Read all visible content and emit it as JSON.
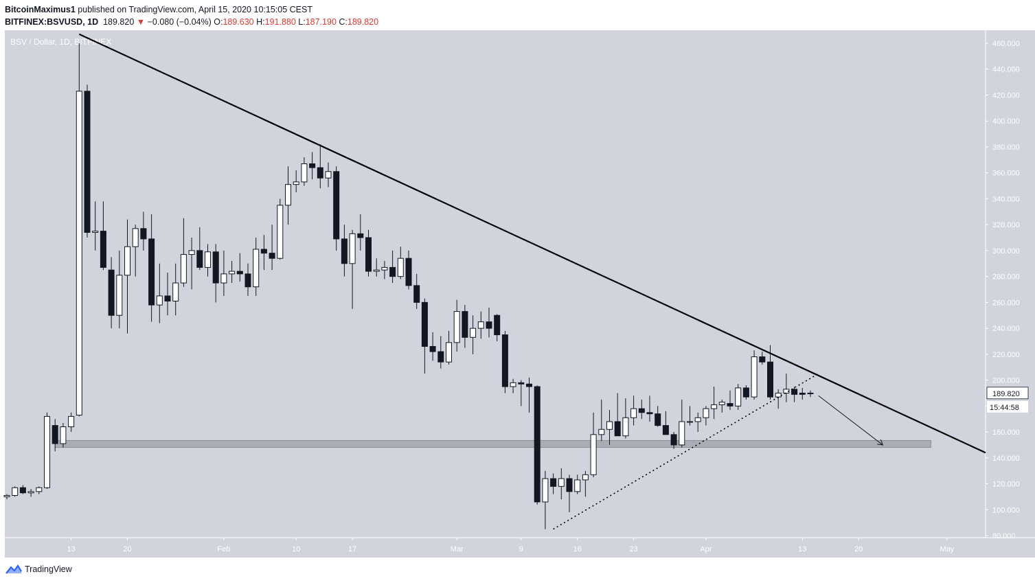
{
  "header": {
    "author": "BitcoinMaximus1",
    "published_text": "published on TradingView.com, April 15, 2020 10:15:05 CEST",
    "symbol": "BITFINEX:BSVUSD, 1D",
    "last": "189.820",
    "change": "−0.080 (−0.04%)",
    "o_label": "O:",
    "o": "189.630",
    "h_label": "H:",
    "h": "191.880",
    "l_label": "L:",
    "l": "187.190",
    "c_label": "C:",
    "c": "189.820"
  },
  "chart_data": {
    "type": "candlestick",
    "title": "BSV / Dollar, 1D, BITFINEX",
    "ylim": [
      80,
      470
    ],
    "y_ticks": [
      "80.000",
      "100.000",
      "120.000",
      "140.000",
      "160.000",
      "180.000",
      "200.000",
      "220.000",
      "240.000",
      "260.000",
      "280.000",
      "300.000",
      "320.000",
      "340.000",
      "360.000",
      "380.000",
      "400.000",
      "420.000",
      "440.000",
      "460.000"
    ],
    "x_ticks": [
      "13",
      "20",
      "Feb",
      "10",
      "17",
      "Mar",
      "9",
      "16",
      "23",
      "Apr",
      "13",
      "20",
      "May"
    ],
    "x_start_date": "2020-01-05",
    "dates": [
      "2020-01-05",
      "2020-01-06",
      "2020-01-07",
      "2020-01-08",
      "2020-01-09",
      "2020-01-10",
      "2020-01-11",
      "2020-01-12",
      "2020-01-13",
      "2020-01-14",
      "2020-01-15",
      "2020-01-16",
      "2020-01-17",
      "2020-01-18",
      "2020-01-19",
      "2020-01-20",
      "2020-01-21",
      "2020-01-22",
      "2020-01-23",
      "2020-01-24",
      "2020-01-25",
      "2020-01-26",
      "2020-01-27",
      "2020-01-28",
      "2020-01-29",
      "2020-01-30",
      "2020-01-31",
      "2020-02-01",
      "2020-02-02",
      "2020-02-03",
      "2020-02-04",
      "2020-02-05",
      "2020-02-06",
      "2020-02-07",
      "2020-02-08",
      "2020-02-09",
      "2020-02-10",
      "2020-02-11",
      "2020-02-12",
      "2020-02-13",
      "2020-02-14",
      "2020-02-15",
      "2020-02-16",
      "2020-02-17",
      "2020-02-18",
      "2020-02-19",
      "2020-02-20",
      "2020-02-21",
      "2020-02-22",
      "2020-02-23",
      "2020-02-24",
      "2020-02-25",
      "2020-02-26",
      "2020-02-27",
      "2020-02-28",
      "2020-02-29",
      "2020-03-01",
      "2020-03-02",
      "2020-03-03",
      "2020-03-04",
      "2020-03-05",
      "2020-03-06",
      "2020-03-07",
      "2020-03-08",
      "2020-03-09",
      "2020-03-10",
      "2020-03-11",
      "2020-03-12",
      "2020-03-13",
      "2020-03-14",
      "2020-03-15",
      "2020-03-16",
      "2020-03-17",
      "2020-03-18",
      "2020-03-19",
      "2020-03-20",
      "2020-03-21",
      "2020-03-22",
      "2020-03-23",
      "2020-03-24",
      "2020-03-25",
      "2020-03-26",
      "2020-03-27",
      "2020-03-28",
      "2020-03-29",
      "2020-03-30",
      "2020-03-31",
      "2020-04-01",
      "2020-04-02",
      "2020-04-03",
      "2020-04-04",
      "2020-04-05",
      "2020-04-06",
      "2020-04-07",
      "2020-04-08",
      "2020-04-09",
      "2020-04-10",
      "2020-04-11",
      "2020-04-12",
      "2020-04-13",
      "2020-04-14",
      "2020-04-15"
    ],
    "ohlc": [
      [
        110,
        112,
        108,
        111
      ],
      [
        111,
        118,
        110,
        117
      ],
      [
        117,
        119,
        112,
        113
      ],
      [
        113,
        116,
        110,
        114
      ],
      [
        114,
        118,
        112,
        117
      ],
      [
        117,
        175,
        116,
        172
      ],
      [
        165,
        170,
        145,
        151
      ],
      [
        151,
        167,
        148,
        164
      ],
      [
        164,
        175,
        160,
        172
      ],
      [
        173,
        460,
        172,
        423
      ],
      [
        423,
        428,
        310,
        314
      ],
      [
        314,
        338,
        300,
        315
      ],
      [
        315,
        338,
        285,
        287
      ],
      [
        285,
        295,
        240,
        250
      ],
      [
        250,
        300,
        240,
        281
      ],
      [
        281,
        324,
        236,
        303
      ],
      [
        303,
        320,
        280,
        317
      ],
      [
        317,
        330,
        300,
        309
      ],
      [
        309,
        328,
        245,
        258
      ],
      [
        258,
        290,
        244,
        265
      ],
      [
        265,
        283,
        250,
        261
      ],
      [
        261,
        290,
        250,
        275
      ],
      [
        275,
        325,
        272,
        297
      ],
      [
        297,
        310,
        270,
        300
      ],
      [
        300,
        318,
        285,
        287
      ],
      [
        287,
        305,
        280,
        299
      ],
      [
        299,
        305,
        260,
        275
      ],
      [
        275,
        300,
        265,
        282
      ],
      [
        282,
        292,
        275,
        284
      ],
      [
        284,
        298,
        276,
        282
      ],
      [
        282,
        290,
        265,
        272
      ],
      [
        272,
        310,
        265,
        301
      ],
      [
        301,
        312,
        285,
        298
      ],
      [
        298,
        320,
        285,
        294
      ],
      [
        294,
        340,
        293,
        335
      ],
      [
        335,
        365,
        320,
        351
      ],
      [
        351,
        362,
        345,
        353
      ],
      [
        353,
        372,
        350,
        367
      ],
      [
        367,
        376,
        355,
        364
      ],
      [
        364,
        382,
        348,
        356
      ],
      [
        356,
        368,
        349,
        361
      ],
      [
        361,
        365,
        300,
        309
      ],
      [
        309,
        320,
        280,
        290
      ],
      [
        290,
        316,
        255,
        313
      ],
      [
        313,
        328,
        300,
        310
      ],
      [
        310,
        316,
        280,
        284
      ],
      [
        284,
        294,
        280,
        285
      ],
      [
        285,
        292,
        278,
        287
      ],
      [
        287,
        300,
        275,
        280
      ],
      [
        280,
        303,
        278,
        294
      ],
      [
        294,
        300,
        270,
        273
      ],
      [
        273,
        282,
        255,
        260
      ],
      [
        260,
        263,
        205,
        226
      ],
      [
        226,
        237,
        215,
        222
      ],
      [
        222,
        234,
        209,
        214
      ],
      [
        214,
        238,
        212,
        229
      ],
      [
        229,
        262,
        222,
        253
      ],
      [
        253,
        258,
        225,
        233
      ],
      [
        233,
        250,
        220,
        240
      ],
      [
        240,
        253,
        232,
        245
      ],
      [
        245,
        256,
        233,
        240
      ],
      [
        250,
        251,
        230,
        235
      ],
      [
        235,
        238,
        190,
        195
      ],
      [
        195,
        201,
        190,
        198
      ],
      [
        198,
        200,
        180,
        197
      ],
      [
        197,
        202,
        175,
        195
      ],
      [
        195,
        196,
        104,
        106
      ],
      [
        106,
        130,
        85,
        124
      ],
      [
        124,
        128,
        112,
        118
      ],
      [
        118,
        132,
        108,
        124
      ],
      [
        124,
        127,
        98,
        114
      ],
      [
        114,
        127,
        112,
        123
      ],
      [
        123,
        130,
        110,
        127
      ],
      [
        127,
        175,
        125,
        158
      ],
      [
        158,
        185,
        153,
        162
      ],
      [
        162,
        177,
        150,
        168
      ],
      [
        168,
        190,
        160,
        157
      ],
      [
        157,
        186,
        155,
        171
      ],
      [
        171,
        188,
        165,
        178
      ],
      [
        178,
        185,
        170,
        175
      ],
      [
        175,
        188,
        168,
        174
      ],
      [
        174,
        180,
        164,
        165
      ],
      [
        165,
        176,
        158,
        158
      ],
      [
        158,
        160,
        147,
        150
      ],
      [
        150,
        185,
        148,
        168
      ],
      [
        168,
        180,
        165,
        168
      ],
      [
        168,
        175,
        160,
        171
      ],
      [
        171,
        180,
        165,
        178
      ],
      [
        178,
        195,
        170,
        181
      ],
      [
        181,
        185,
        175,
        183
      ],
      [
        182,
        192,
        177,
        180
      ],
      [
        180,
        197,
        177,
        194
      ],
      [
        194,
        196,
        185,
        187
      ],
      [
        187,
        223,
        185,
        218
      ],
      [
        218,
        222,
        212,
        214
      ],
      [
        214,
        227,
        185,
        187
      ],
      [
        187,
        193,
        178,
        190
      ],
      [
        190,
        205,
        183,
        193
      ],
      [
        193,
        195,
        183,
        189
      ],
      [
        190,
        194,
        185,
        189
      ],
      [
        190,
        192,
        187,
        190
      ]
    ],
    "last_price_label": "189.820",
    "countdown_label": "15:44:58"
  },
  "colors": {
    "bg": "#d1d4dc",
    "bull_body": "#ffffff",
    "bear_body": "#131722",
    "accent_red": "#e0372f",
    "support_zone": "#a9abb2"
  },
  "footer": {
    "brand": "TradingView"
  }
}
